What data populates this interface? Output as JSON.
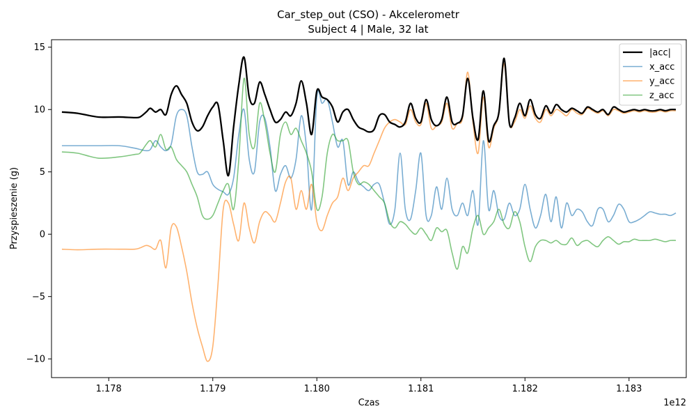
{
  "chart_data": {
    "type": "line",
    "title": "Car_step_out (CSO) - Akcelerometr",
    "subtitle": "Subject 4 | Male, 32 lat",
    "xlabel": "Czas",
    "ylabel": "Przyspieszenie (g)",
    "x_offset_label": "1e12",
    "xlim": [
      1.17745,
      1.18355
    ],
    "ylim": [
      -11.5,
      15.6
    ],
    "x_ticks": [
      1.178,
      1.179,
      1.18,
      1.181,
      1.182,
      1.183
    ],
    "x_tick_labels": [
      "1.178",
      "1.179",
      "1.180",
      "1.181",
      "1.182",
      "1.183"
    ],
    "y_ticks": [
      -10,
      -5,
      0,
      5,
      10,
      15
    ],
    "y_tick_labels": [
      "−10",
      "−5",
      "0",
      "5",
      "10",
      "15"
    ],
    "grid": false,
    "legend_position": "top-right",
    "series": [
      {
        "name": "|acc|",
        "color": "#000000",
        "x": [
          1.17755,
          1.1777,
          1.1779,
          1.1781,
          1.17825,
          1.1783,
          1.17836,
          1.1784,
          1.17845,
          1.1785,
          1.17855,
          1.1786,
          1.17865,
          1.1787,
          1.17875,
          1.1788,
          1.17885,
          1.1789,
          1.17895,
          1.179,
          1.17905,
          1.1791,
          1.17915,
          1.1792,
          1.17925,
          1.1793,
          1.17935,
          1.1794,
          1.17945,
          1.1795,
          1.17955,
          1.1796,
          1.17965,
          1.1797,
          1.17975,
          1.1798,
          1.17985,
          1.1799,
          1.17995,
          1.18,
          1.18005,
          1.1801,
          1.18015,
          1.1802,
          1.18025,
          1.1803,
          1.18035,
          1.1804,
          1.18045,
          1.1805,
          1.18055,
          1.1806,
          1.18065,
          1.1807,
          1.18075,
          1.1808,
          1.18085,
          1.1809,
          1.18095,
          1.181,
          1.18105,
          1.1811,
          1.18115,
          1.1812,
          1.18125,
          1.1813,
          1.18135,
          1.1814,
          1.18145,
          1.1815,
          1.18155,
          1.1816,
          1.18165,
          1.1817,
          1.18175,
          1.1818,
          1.18185,
          1.1819,
          1.18195,
          1.182,
          1.18205,
          1.1821,
          1.18215,
          1.1822,
          1.18225,
          1.1823,
          1.18235,
          1.1824,
          1.18245,
          1.1825,
          1.18255,
          1.1826,
          1.18265,
          1.1827,
          1.18275,
          1.1828,
          1.18285,
          1.1829,
          1.18295,
          1.183,
          1.18305,
          1.1831,
          1.18315,
          1.1832,
          1.18325,
          1.1833,
          1.18335,
          1.1834,
          1.18345
        ],
        "values": [
          9.8,
          9.7,
          9.4,
          9.4,
          9.35,
          9.4,
          9.8,
          10.1,
          9.8,
          10.0,
          9.6,
          11.2,
          11.9,
          11.2,
          10.5,
          9.0,
          8.3,
          8.6,
          9.5,
          10.2,
          10.4,
          7.5,
          4.7,
          8.6,
          12.0,
          14.2,
          11.0,
          10.5,
          12.2,
          11.2,
          10.0,
          9.0,
          9.2,
          9.8,
          9.5,
          10.5,
          12.3,
          10.5,
          8.0,
          11.5,
          11.0,
          10.8,
          10.2,
          9.0,
          9.8,
          10.0,
          9.2,
          8.6,
          8.4,
          8.2,
          8.4,
          9.5,
          9.6,
          9.0,
          8.8,
          8.6,
          9.0,
          10.5,
          9.3,
          9.0,
          10.8,
          9.2,
          8.7,
          9.2,
          11.0,
          9.0,
          8.9,
          9.5,
          12.5,
          9.3,
          7.6,
          11.5,
          7.5,
          8.7,
          9.8,
          14.1,
          8.9,
          9.3,
          10.5,
          9.5,
          10.8,
          9.6,
          9.3,
          10.3,
          9.7,
          10.4,
          10.0,
          9.8,
          10.1,
          9.9,
          9.7,
          10.2,
          10.0,
          9.8,
          10.0,
          9.6,
          10.2,
          10.0,
          9.8,
          9.9,
          10.0,
          9.9,
          10.0,
          9.9,
          9.9,
          10.0,
          9.9,
          10.0,
          10.0
        ]
      },
      {
        "name": "x_acc",
        "color": "#1f77b4",
        "x": [
          1.17755,
          1.1777,
          1.1779,
          1.1781,
          1.17825,
          1.1783,
          1.17836,
          1.1784,
          1.17845,
          1.1785,
          1.17855,
          1.1786,
          1.17865,
          1.1787,
          1.17875,
          1.1788,
          1.17885,
          1.1789,
          1.17895,
          1.179,
          1.17905,
          1.1791,
          1.17915,
          1.1792,
          1.17925,
          1.1793,
          1.17935,
          1.1794,
          1.17945,
          1.1795,
          1.17955,
          1.1796,
          1.17965,
          1.1797,
          1.17975,
          1.1798,
          1.17985,
          1.1799,
          1.17995,
          1.18,
          1.18005,
          1.1801,
          1.18015,
          1.1802,
          1.18025,
          1.1803,
          1.18035,
          1.1804,
          1.18045,
          1.1805,
          1.18055,
          1.1806,
          1.18065,
          1.1807,
          1.18075,
          1.1808,
          1.18085,
          1.1809,
          1.18095,
          1.181,
          1.18105,
          1.1811,
          1.18115,
          1.1812,
          1.18125,
          1.1813,
          1.18135,
          1.1814,
          1.18145,
          1.1815,
          1.18155,
          1.1816,
          1.18165,
          1.1817,
          1.18175,
          1.1818,
          1.18185,
          1.1819,
          1.18195,
          1.182,
          1.18205,
          1.1821,
          1.18215,
          1.1822,
          1.18225,
          1.1823,
          1.18235,
          1.1824,
          1.18245,
          1.1825,
          1.18255,
          1.1826,
          1.18265,
          1.1827,
          1.18275,
          1.1828,
          1.18285,
          1.1829,
          1.18295,
          1.183,
          1.18305,
          1.1831,
          1.18315,
          1.1832,
          1.18325,
          1.1833,
          1.18335,
          1.1834,
          1.18345
        ],
        "values": [
          7.1,
          7.1,
          7.1,
          7.1,
          6.9,
          6.8,
          6.7,
          6.8,
          7.5,
          7.0,
          6.7,
          7.2,
          9.5,
          10.0,
          9.5,
          7.0,
          5.0,
          4.8,
          5.0,
          4.0,
          3.6,
          3.4,
          3.2,
          4.5,
          8.0,
          10.0,
          6.0,
          5.0,
          9.0,
          9.3,
          7.0,
          3.5,
          4.8,
          5.5,
          4.5,
          6.0,
          9.5,
          7.0,
          2.0,
          11.0,
          10.5,
          10.8,
          9.0,
          7.0,
          7.5,
          4.0,
          5.0,
          4.2,
          3.8,
          3.5,
          4.0,
          4.0,
          2.5,
          0.8,
          2.0,
          6.5,
          2.0,
          1.2,
          3.5,
          6.5,
          1.5,
          1.5,
          3.8,
          2.0,
          4.5,
          2.0,
          1.5,
          2.5,
          1.5,
          3.5,
          0.8,
          7.5,
          2.0,
          3.5,
          1.5,
          1.2,
          2.5,
          1.5,
          2.0,
          4.0,
          2.0,
          0.5,
          1.5,
          3.2,
          1.0,
          3.0,
          0.5,
          2.5,
          1.5,
          2.0,
          1.8,
          1.0,
          0.7,
          2.0,
          2.0,
          1.0,
          1.5,
          2.4,
          2.0,
          1.0,
          1.0,
          1.2,
          1.5,
          1.8,
          1.7,
          1.6,
          1.6,
          1.5,
          1.7
        ]
      },
      {
        "name": "y_acc",
        "color": "#ff7f0e",
        "x": [
          1.17755,
          1.1777,
          1.1779,
          1.1781,
          1.17825,
          1.1783,
          1.17836,
          1.1784,
          1.17845,
          1.1785,
          1.17855,
          1.1786,
          1.17865,
          1.1787,
          1.17875,
          1.1788,
          1.17885,
          1.1789,
          1.17895,
          1.179,
          1.17905,
          1.1791,
          1.17915,
          1.1792,
          1.17925,
          1.1793,
          1.17935,
          1.1794,
          1.17945,
          1.1795,
          1.17955,
          1.1796,
          1.17965,
          1.1797,
          1.17975,
          1.1798,
          1.17985,
          1.1799,
          1.17995,
          1.18,
          1.18005,
          1.1801,
          1.18015,
          1.1802,
          1.18025,
          1.1803,
          1.18035,
          1.1804,
          1.18045,
          1.1805,
          1.18055,
          1.1806,
          1.18065,
          1.1807,
          1.18075,
          1.1808,
          1.18085,
          1.1809,
          1.18095,
          1.181,
          1.18105,
          1.1811,
          1.18115,
          1.1812,
          1.18125,
          1.1813,
          1.18135,
          1.1814,
          1.18145,
          1.1815,
          1.18155,
          1.1816,
          1.18165,
          1.1817,
          1.18175,
          1.1818,
          1.18185,
          1.1819,
          1.18195,
          1.182,
          1.18205,
          1.1821,
          1.18215,
          1.1822,
          1.18225,
          1.1823,
          1.18235,
          1.1824,
          1.18245,
          1.1825,
          1.18255,
          1.1826,
          1.18265,
          1.1827,
          1.18275,
          1.1828,
          1.18285,
          1.1829,
          1.18295,
          1.183,
          1.18305,
          1.1831,
          1.18315,
          1.1832,
          1.18325,
          1.1833,
          1.18335,
          1.1834,
          1.18345
        ],
        "values": [
          -1.2,
          -1.25,
          -1.2,
          -1.2,
          -1.2,
          -1.1,
          -0.9,
          -1.0,
          -1.2,
          -0.5,
          -2.7,
          0.5,
          0.6,
          -1.0,
          -3.0,
          -5.5,
          -7.5,
          -9.0,
          -10.2,
          -9.0,
          -4.0,
          2.0,
          2.5,
          0.8,
          -0.5,
          2.5,
          0.5,
          -0.7,
          1.0,
          1.8,
          1.5,
          1.0,
          2.5,
          4.2,
          4.5,
          2.0,
          3.5,
          2.0,
          4.0,
          1.0,
          0.3,
          1.5,
          2.5,
          3.0,
          4.5,
          3.5,
          4.5,
          5.0,
          5.5,
          5.5,
          6.5,
          7.5,
          8.5,
          9.0,
          9.2,
          9.0,
          8.8,
          10.0,
          9.0,
          8.8,
          10.5,
          8.5,
          8.7,
          9.0,
          10.5,
          8.5,
          8.9,
          9.3,
          13.0,
          9.0,
          6.5,
          11.0,
          7.0,
          8.5,
          9.7,
          13.7,
          8.9,
          9.0,
          10.0,
          9.3,
          10.3,
          9.3,
          9.0,
          10.0,
          9.5,
          10.0,
          9.8,
          9.5,
          10.0,
          9.7,
          9.6,
          10.1,
          9.9,
          9.7,
          9.9,
          9.5,
          10.0,
          9.9,
          9.7,
          9.8,
          9.9,
          9.8,
          9.9,
          9.8,
          9.8,
          9.9,
          9.8,
          9.9,
          9.9
        ]
      },
      {
        "name": "z_acc",
        "color": "#2ca02c",
        "x": [
          1.17755,
          1.1777,
          1.1779,
          1.1781,
          1.17825,
          1.1783,
          1.17836,
          1.1784,
          1.17845,
          1.1785,
          1.17855,
          1.1786,
          1.17865,
          1.1787,
          1.17875,
          1.1788,
          1.17885,
          1.1789,
          1.17895,
          1.179,
          1.17905,
          1.1791,
          1.17915,
          1.1792,
          1.17925,
          1.1793,
          1.17935,
          1.1794,
          1.17945,
          1.1795,
          1.17955,
          1.1796,
          1.17965,
          1.1797,
          1.17975,
          1.1798,
          1.17985,
          1.1799,
          1.17995,
          1.18,
          1.18005,
          1.1801,
          1.18015,
          1.1802,
          1.18025,
          1.1803,
          1.18035,
          1.1804,
          1.18045,
          1.1805,
          1.18055,
          1.1806,
          1.18065,
          1.1807,
          1.18075,
          1.1808,
          1.18085,
          1.1809,
          1.18095,
          1.181,
          1.18105,
          1.1811,
          1.18115,
          1.1812,
          1.18125,
          1.1813,
          1.18135,
          1.1814,
          1.18145,
          1.1815,
          1.18155,
          1.1816,
          1.18165,
          1.1817,
          1.18175,
          1.1818,
          1.18185,
          1.1819,
          1.18195,
          1.182,
          1.18205,
          1.1821,
          1.18215,
          1.1822,
          1.18225,
          1.1823,
          1.18235,
          1.1824,
          1.18245,
          1.1825,
          1.18255,
          1.1826,
          1.18265,
          1.1827,
          1.18275,
          1.1828,
          1.18285,
          1.1829,
          1.18295,
          1.183,
          1.18305,
          1.1831,
          1.18315,
          1.1832,
          1.18325,
          1.1833,
          1.18335,
          1.1834,
          1.18345
        ],
        "values": [
          6.6,
          6.5,
          6.1,
          6.2,
          6.4,
          6.5,
          7.2,
          7.5,
          7.0,
          8.0,
          6.8,
          7.0,
          6.0,
          5.5,
          5.0,
          4.0,
          3.0,
          1.5,
          1.2,
          1.5,
          2.5,
          3.5,
          4.0,
          2.0,
          6.0,
          12.5,
          8.0,
          7.0,
          10.5,
          9.0,
          6.5,
          5.0,
          8.0,
          9.0,
          8.0,
          8.5,
          7.5,
          6.5,
          5.0,
          2.0,
          3.0,
          6.5,
          8.0,
          7.5,
          7.5,
          7.5,
          5.0,
          4.0,
          4.2,
          4.0,
          3.5,
          3.0,
          2.5,
          1.0,
          0.5,
          1.0,
          0.8,
          0.3,
          0.0,
          0.5,
          0.0,
          -0.5,
          0.5,
          0.2,
          0.3,
          -1.5,
          -2.8,
          -1.0,
          -1.5,
          0.5,
          1.5,
          0.0,
          0.5,
          1.0,
          2.0,
          0.8,
          0.5,
          1.8,
          1.0,
          -1.0,
          -2.2,
          -1.0,
          -0.5,
          -0.5,
          -0.7,
          -0.5,
          -0.8,
          -0.8,
          -0.3,
          -0.9,
          -0.6,
          -0.5,
          -0.8,
          -1.0,
          -0.5,
          -0.2,
          -0.5,
          -0.8,
          -0.6,
          -0.6,
          -0.4,
          -0.5,
          -0.5,
          -0.5,
          -0.4,
          -0.5,
          -0.6,
          -0.5,
          -0.5
        ]
      }
    ]
  }
}
